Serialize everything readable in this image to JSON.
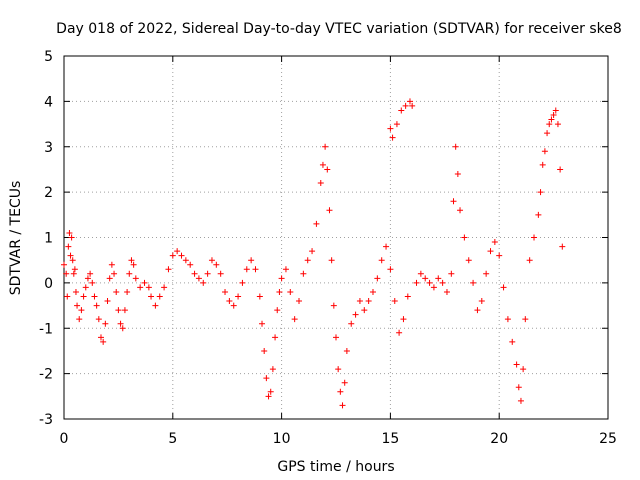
{
  "chart_data": {
    "type": "scatter",
    "title": "Day 018 of 2022, Sidereal Day-to-day VTEC variation (SDTVAR) for receiver ske8",
    "xlabel": "GPS time / hours",
    "ylabel": "SDTVAR / TECUs",
    "xlim": [
      0,
      25
    ],
    "ylim": [
      -3,
      5
    ],
    "xticks": [
      "0",
      "5",
      "10",
      "15",
      "20",
      "25"
    ],
    "yticks": [
      "-3",
      "-2",
      "-1",
      "0",
      "1",
      "2",
      "3",
      "4",
      "5"
    ],
    "grid": true,
    "marker": "+",
    "color": "#ff0000",
    "series": [
      {
        "name": "SDTVAR",
        "points": [
          [
            0.0,
            0.4
          ],
          [
            0.1,
            0.2
          ],
          [
            0.15,
            -0.3
          ],
          [
            0.2,
            0.8
          ],
          [
            0.25,
            1.1
          ],
          [
            0.3,
            0.6
          ],
          [
            0.35,
            1.0
          ],
          [
            0.4,
            0.5
          ],
          [
            0.45,
            0.2
          ],
          [
            0.5,
            0.3
          ],
          [
            0.55,
            -0.2
          ],
          [
            0.6,
            -0.5
          ],
          [
            0.7,
            -0.8
          ],
          [
            0.8,
            -0.6
          ],
          [
            0.9,
            -0.3
          ],
          [
            1.0,
            -0.1
          ],
          [
            1.1,
            0.1
          ],
          [
            1.2,
            0.2
          ],
          [
            1.3,
            0.0
          ],
          [
            1.4,
            -0.3
          ],
          [
            1.5,
            -0.5
          ],
          [
            1.6,
            -0.8
          ],
          [
            1.7,
            -1.2
          ],
          [
            1.8,
            -1.3
          ],
          [
            1.9,
            -0.9
          ],
          [
            2.0,
            -0.4
          ],
          [
            2.1,
            0.1
          ],
          [
            2.2,
            0.4
          ],
          [
            2.3,
            0.2
          ],
          [
            2.4,
            -0.2
          ],
          [
            2.5,
            -0.6
          ],
          [
            2.6,
            -0.9
          ],
          [
            2.7,
            -1.0
          ],
          [
            2.8,
            -0.6
          ],
          [
            2.9,
            -0.2
          ],
          [
            3.0,
            0.2
          ],
          [
            3.1,
            0.5
          ],
          [
            3.2,
            0.4
          ],
          [
            3.3,
            0.1
          ],
          [
            3.5,
            -0.1
          ],
          [
            3.7,
            0.0
          ],
          [
            3.9,
            -0.1
          ],
          [
            4.0,
            -0.3
          ],
          [
            4.2,
            -0.5
          ],
          [
            4.4,
            -0.3
          ],
          [
            4.6,
            -0.1
          ],
          [
            4.8,
            0.3
          ],
          [
            5.0,
            0.6
          ],
          [
            5.2,
            0.7
          ],
          [
            5.4,
            0.6
          ],
          [
            5.6,
            0.5
          ],
          [
            5.8,
            0.4
          ],
          [
            6.0,
            0.2
          ],
          [
            6.2,
            0.1
          ],
          [
            6.4,
            0.0
          ],
          [
            6.6,
            0.2
          ],
          [
            6.8,
            0.5
          ],
          [
            7.0,
            0.4
          ],
          [
            7.2,
            0.2
          ],
          [
            7.4,
            -0.2
          ],
          [
            7.6,
            -0.4
          ],
          [
            7.8,
            -0.5
          ],
          [
            8.0,
            -0.3
          ],
          [
            8.2,
            0.0
          ],
          [
            8.4,
            0.3
          ],
          [
            8.6,
            0.5
          ],
          [
            8.8,
            0.3
          ],
          [
            9.0,
            -0.3
          ],
          [
            9.1,
            -0.9
          ],
          [
            9.2,
            -1.5
          ],
          [
            9.3,
            -2.1
          ],
          [
            9.4,
            -2.5
          ],
          [
            9.5,
            -2.4
          ],
          [
            9.6,
            -1.9
          ],
          [
            9.7,
            -1.2
          ],
          [
            9.8,
            -0.6
          ],
          [
            9.9,
            -0.2
          ],
          [
            10.0,
            0.1
          ],
          [
            10.2,
            0.3
          ],
          [
            10.4,
            -0.2
          ],
          [
            10.6,
            -0.8
          ],
          [
            10.8,
            -0.4
          ],
          [
            11.0,
            0.2
          ],
          [
            11.2,
            0.5
          ],
          [
            11.4,
            0.7
          ],
          [
            11.6,
            1.3
          ],
          [
            11.8,
            2.2
          ],
          [
            11.9,
            2.6
          ],
          [
            12.0,
            3.0
          ],
          [
            12.1,
            2.5
          ],
          [
            12.2,
            1.6
          ],
          [
            12.3,
            0.5
          ],
          [
            12.4,
            -0.5
          ],
          [
            12.5,
            -1.2
          ],
          [
            12.6,
            -1.9
          ],
          [
            12.7,
            -2.4
          ],
          [
            12.8,
            -2.7
          ],
          [
            12.9,
            -2.2
          ],
          [
            13.0,
            -1.5
          ],
          [
            13.2,
            -0.9
          ],
          [
            13.4,
            -0.7
          ],
          [
            13.6,
            -0.4
          ],
          [
            13.8,
            -0.6
          ],
          [
            14.0,
            -0.4
          ],
          [
            14.2,
            -0.2
          ],
          [
            14.4,
            0.1
          ],
          [
            14.6,
            0.5
          ],
          [
            14.8,
            0.8
          ],
          [
            15.0,
            0.3
          ],
          [
            15.2,
            -0.4
          ],
          [
            15.4,
            -1.1
          ],
          [
            15.6,
            -0.8
          ],
          [
            15.8,
            -0.3
          ],
          [
            15.0,
            3.4
          ],
          [
            15.1,
            3.2
          ],
          [
            15.3,
            3.5
          ],
          [
            15.5,
            3.8
          ],
          [
            15.7,
            3.9
          ],
          [
            15.9,
            4.0
          ],
          [
            16.0,
            3.9
          ],
          [
            16.2,
            0.0
          ],
          [
            16.4,
            0.2
          ],
          [
            16.6,
            0.1
          ],
          [
            16.8,
            0.0
          ],
          [
            17.0,
            -0.1
          ],
          [
            17.2,
            0.1
          ],
          [
            17.4,
            0.0
          ],
          [
            17.6,
            -0.2
          ],
          [
            17.8,
            0.2
          ],
          [
            17.9,
            1.8
          ],
          [
            18.0,
            3.0
          ],
          [
            18.1,
            2.4
          ],
          [
            18.2,
            1.6
          ],
          [
            18.4,
            1.0
          ],
          [
            18.6,
            0.5
          ],
          [
            18.8,
            0.0
          ],
          [
            19.0,
            -0.6
          ],
          [
            19.2,
            -0.4
          ],
          [
            19.4,
            0.2
          ],
          [
            19.6,
            0.7
          ],
          [
            19.8,
            0.9
          ],
          [
            20.0,
            0.6
          ],
          [
            20.2,
            -0.1
          ],
          [
            20.4,
            -0.8
          ],
          [
            20.6,
            -1.3
          ],
          [
            20.8,
            -1.8
          ],
          [
            20.9,
            -2.3
          ],
          [
            21.0,
            -2.6
          ],
          [
            21.1,
            -1.9
          ],
          [
            21.2,
            -0.8
          ],
          [
            21.4,
            0.5
          ],
          [
            21.6,
            1.0
          ],
          [
            21.8,
            1.5
          ],
          [
            21.9,
            2.0
          ],
          [
            22.0,
            2.6
          ],
          [
            22.1,
            2.9
          ],
          [
            22.2,
            3.3
          ],
          [
            22.3,
            3.5
          ],
          [
            22.4,
            3.6
          ],
          [
            22.5,
            3.7
          ],
          [
            22.6,
            3.8
          ],
          [
            22.7,
            3.5
          ],
          [
            22.8,
            2.5
          ],
          [
            22.9,
            0.8
          ]
        ]
      }
    ]
  }
}
